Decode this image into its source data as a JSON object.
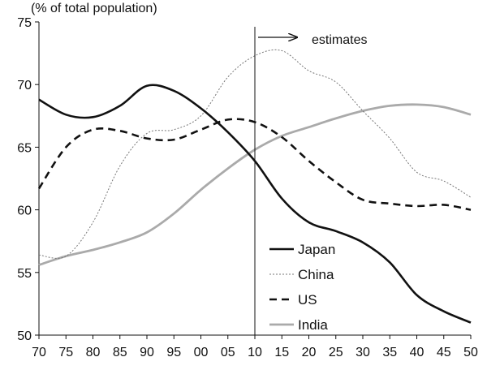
{
  "chart_data": {
    "type": "line",
    "ylabel": "(% of total population)",
    "xlabel": "",
    "ylim": [
      50,
      75
    ],
    "yticks": [
      50,
      55,
      60,
      65,
      70,
      75
    ],
    "x": [
      1970,
      1975,
      1980,
      1985,
      1990,
      1995,
      2000,
      2005,
      2010,
      2015,
      2020,
      2025,
      2030,
      2035,
      2040,
      2045,
      2050
    ],
    "xtick_labels": [
      "70",
      "75",
      "80",
      "85",
      "90",
      "95",
      "00",
      "05",
      "10",
      "15",
      "20",
      "25",
      "30",
      "35",
      "40",
      "45",
      "50"
    ],
    "grid": false,
    "legend_position": "lower-right",
    "annotation": {
      "text": "estimates",
      "x": 2010
    },
    "series": [
      {
        "name": "Japan",
        "style": "solid-black",
        "values": [
          68.8,
          67.6,
          67.4,
          68.3,
          69.9,
          69.5,
          68.1,
          66.2,
          63.9,
          60.9,
          59.0,
          58.3,
          57.4,
          55.8,
          53.2,
          51.9,
          51.0
        ]
      },
      {
        "name": "China",
        "style": "dotted-gray",
        "values": [
          56.4,
          56.3,
          59.0,
          63.5,
          66.1,
          66.4,
          67.5,
          70.6,
          72.3,
          72.7,
          71.1,
          70.2,
          67.9,
          65.7,
          63.0,
          62.3,
          61.0
        ]
      },
      {
        "name": "US",
        "style": "dashed-black",
        "values": [
          61.7,
          65.0,
          66.4,
          66.3,
          65.7,
          65.6,
          66.4,
          67.2,
          67.0,
          65.8,
          63.9,
          62.2,
          60.8,
          60.5,
          60.3,
          60.4,
          60.0
        ]
      },
      {
        "name": "India",
        "style": "solid-gray",
        "values": [
          55.6,
          56.3,
          56.8,
          57.4,
          58.2,
          59.7,
          61.6,
          63.3,
          64.8,
          65.9,
          66.6,
          67.3,
          67.9,
          68.3,
          68.4,
          68.2,
          67.6
        ]
      }
    ]
  },
  "colors": {
    "axis": "#111111",
    "japan": "#111111",
    "china": "#777777",
    "us": "#111111",
    "india": "#aaaaaa"
  }
}
